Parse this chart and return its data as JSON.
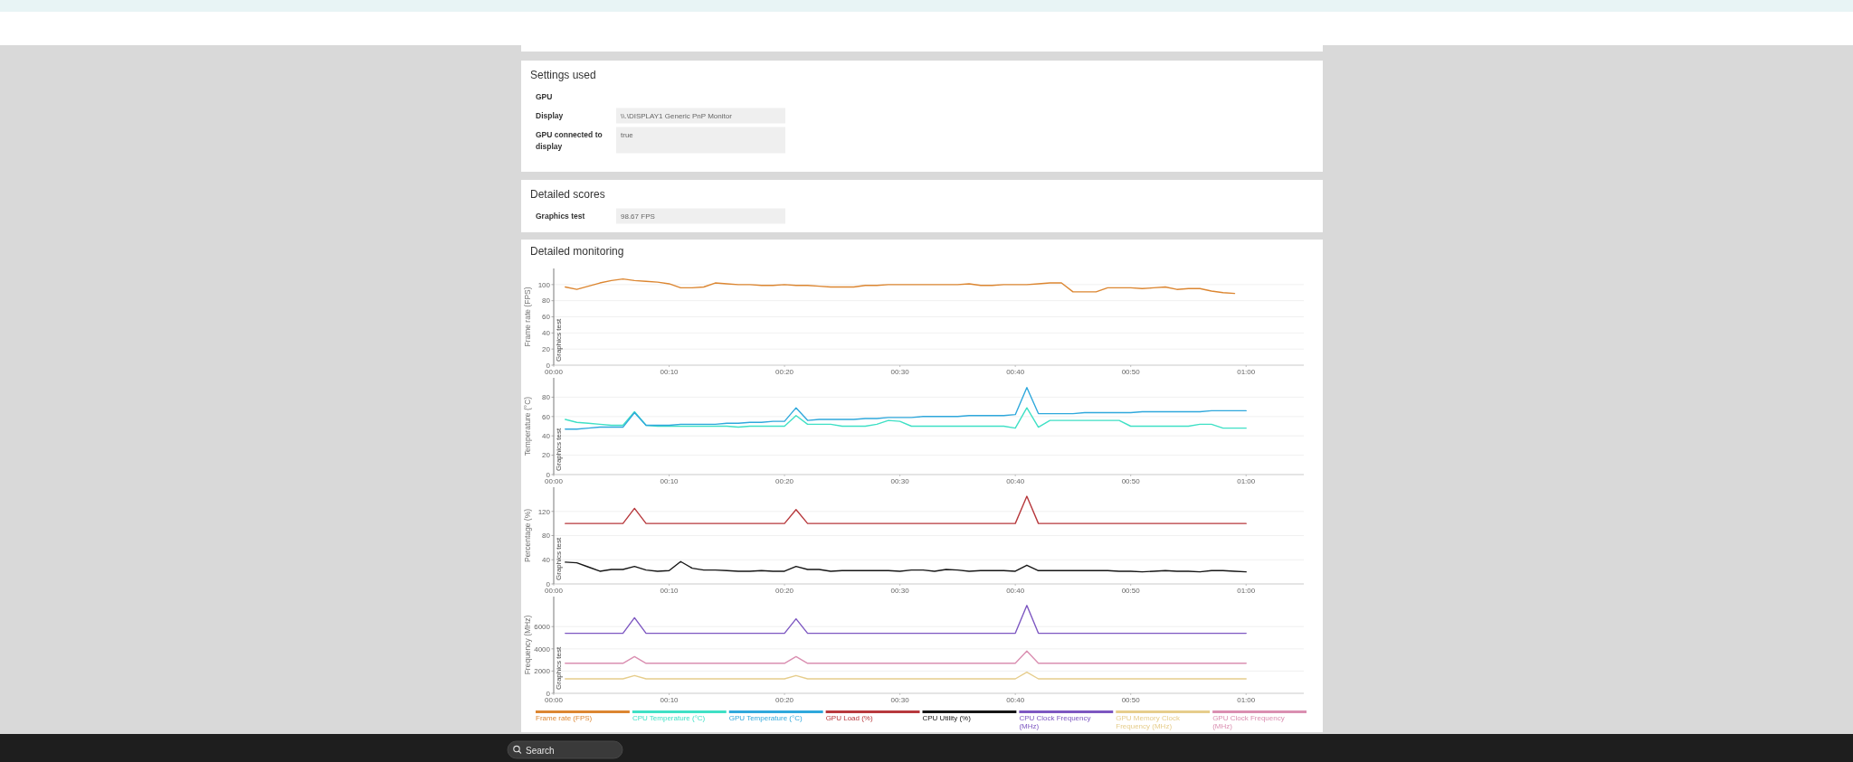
{
  "chart_data": [
    {
      "type": "other",
      "title": "Settings used",
      "categories": [
        "GPU",
        "Display",
        "GPU connected to display"
      ],
      "value_labels": [
        null,
        "\\\\.\\DISPLAY1 Generic PnP Monitor",
        "true"
      ]
    },
    {
      "type": "other",
      "title": "Detailed scores",
      "categories": [
        "Graphics test"
      ],
      "value_labels": [
        "98.67 FPS"
      ]
    },
    {
      "type": "line",
      "title": "Detailed monitoring",
      "ylabel": "Frame rate (FPS)",
      "x": [
        1,
        2,
        3,
        4,
        5,
        6,
        7,
        8,
        9,
        10,
        11,
        12,
        13,
        14,
        15,
        16,
        17,
        18,
        19,
        20,
        21,
        22,
        23,
        24,
        25,
        26,
        27,
        28,
        29,
        30,
        31,
        32,
        33,
        34,
        35,
        36,
        37,
        38,
        39,
        40,
        41,
        42,
        43,
        44,
        45,
        46,
        47,
        48,
        49,
        50,
        51,
        52,
        53,
        54,
        55,
        56,
        57,
        58,
        59
      ],
      "xlim": [
        0,
        65
      ],
      "xticks": [
        {
          "value": 0,
          "label": "00:00"
        },
        {
          "value": 10,
          "label": "00:10"
        },
        {
          "value": 20,
          "label": "00:20"
        },
        {
          "value": 30,
          "label": "00:30"
        },
        {
          "value": 40,
          "label": "00:40"
        },
        {
          "value": 50,
          "label": "00:50"
        },
        {
          "value": 60,
          "label": "01:00"
        }
      ],
      "ylim": [
        0,
        120
      ],
      "yticks": [
        0,
        20,
        40,
        60,
        80,
        100
      ],
      "grid": "y",
      "legend": "bottom",
      "ref_lines": [
        {
          "axis": "x",
          "value": 0,
          "label": "Graphics test"
        }
      ],
      "series": [
        {
          "name": "Frame rate (FPS)",
          "color": "#dc8631",
          "values": [
            97,
            94,
            98,
            102,
            105,
            107,
            105,
            104,
            103,
            101,
            96,
            96,
            97,
            102,
            101,
            100,
            100,
            99,
            99,
            100,
            99,
            99,
            98,
            97,
            97,
            97,
            99,
            99,
            100,
            100,
            100,
            100,
            100,
            100,
            100,
            101,
            99,
            99,
            100,
            100,
            100,
            101,
            102,
            102,
            91,
            91,
            91,
            96,
            96,
            96,
            95,
            96,
            97,
            94,
            95,
            95,
            92,
            90,
            89
          ]
        }
      ]
    },
    {
      "type": "line",
      "ylabel": "Temperature (°C)",
      "x": [
        1,
        2,
        3,
        4,
        5,
        6,
        7,
        8,
        9,
        10,
        11,
        12,
        13,
        14,
        15,
        16,
        17,
        18,
        19,
        20,
        21,
        22,
        23,
        24,
        25,
        26,
        27,
        28,
        29,
        30,
        31,
        32,
        33,
        34,
        35,
        36,
        37,
        38,
        39,
        40,
        41,
        42,
        43,
        44,
        45,
        46,
        47,
        48,
        49,
        50,
        51,
        52,
        53,
        54,
        55,
        56,
        57,
        58,
        59,
        60
      ],
      "xlim": [
        0,
        65
      ],
      "xticks": [
        {
          "value": 0,
          "label": "00:00"
        },
        {
          "value": 10,
          "label": "00:10"
        },
        {
          "value": 20,
          "label": "00:20"
        },
        {
          "value": 30,
          "label": "00:30"
        },
        {
          "value": 40,
          "label": "00:40"
        },
        {
          "value": 50,
          "label": "00:50"
        },
        {
          "value": 60,
          "label": "01:00"
        }
      ],
      "ylim": [
        0,
        100
      ],
      "yticks": [
        0,
        20,
        40,
        60,
        80
      ],
      "grid": "y",
      "legend": "bottom",
      "ref_lines": [
        {
          "axis": "x",
          "value": 0,
          "label": "Graphics test"
        }
      ],
      "series": [
        {
          "name": "CPU Temperature (°C)",
          "color": "#3fe0c5",
          "values": [
            57,
            54,
            53,
            52,
            51,
            51,
            65,
            51,
            50,
            50,
            50,
            50,
            50,
            50,
            50,
            49,
            50,
            50,
            50,
            50,
            61,
            52,
            52,
            52,
            50,
            50,
            50,
            52,
            56,
            55,
            50,
            50,
            50,
            50,
            50,
            50,
            50,
            50,
            50,
            48,
            69,
            49,
            56,
            56,
            56,
            56,
            56,
            56,
            56,
            50,
            50,
            50,
            50,
            50,
            50,
            52,
            52,
            48,
            48,
            48
          ]
        },
        {
          "name": "GPU Temperature (°C)",
          "color": "#2fa8dc",
          "values": [
            47,
            47,
            48,
            49,
            49,
            49,
            64,
            51,
            51,
            51,
            52,
            52,
            52,
            52,
            53,
            53,
            54,
            54,
            55,
            55,
            69,
            56,
            57,
            57,
            57,
            57,
            58,
            58,
            59,
            59,
            59,
            60,
            60,
            60,
            60,
            61,
            61,
            61,
            61,
            62,
            90,
            63,
            63,
            63,
            63,
            64,
            64,
            64,
            64,
            64,
            65,
            65,
            65,
            65,
            65,
            65,
            66,
            66,
            66,
            66
          ]
        }
      ]
    },
    {
      "type": "line",
      "ylabel": "Percentage (%)",
      "x": [
        1,
        2,
        3,
        4,
        5,
        6,
        7,
        8,
        9,
        10,
        11,
        12,
        13,
        14,
        15,
        16,
        17,
        18,
        19,
        20,
        21,
        22,
        23,
        24,
        25,
        26,
        27,
        28,
        29,
        30,
        31,
        32,
        33,
        34,
        35,
        36,
        37,
        38,
        39,
        40,
        41,
        42,
        43,
        44,
        45,
        46,
        47,
        48,
        49,
        50,
        51,
        52,
        53,
        54,
        55,
        56,
        57,
        58,
        59,
        60
      ],
      "xlim": [
        0,
        65
      ],
      "xticks": [
        {
          "value": 0,
          "label": "00:00"
        },
        {
          "value": 10,
          "label": "00:10"
        },
        {
          "value": 20,
          "label": "00:20"
        },
        {
          "value": 30,
          "label": "00:30"
        },
        {
          "value": 40,
          "label": "00:40"
        },
        {
          "value": 50,
          "label": "00:50"
        },
        {
          "value": 60,
          "label": "01:00"
        }
      ],
      "ylim": [
        0,
        160
      ],
      "yticks": [
        0,
        40,
        80,
        120
      ],
      "grid": "y",
      "legend": "bottom",
      "ref_lines": [
        {
          "axis": "x",
          "value": 0,
          "label": "Graphics test"
        }
      ],
      "series": [
        {
          "name": "GPU Load (%)",
          "color": "#b7393d",
          "values": [
            100,
            100,
            100,
            100,
            100,
            100,
            125,
            100,
            100,
            100,
            100,
            100,
            100,
            100,
            100,
            100,
            100,
            100,
            100,
            100,
            123,
            100,
            100,
            100,
            100,
            100,
            100,
            100,
            100,
            100,
            100,
            100,
            100,
            100,
            100,
            100,
            100,
            100,
            100,
            100,
            145,
            100,
            100,
            100,
            100,
            100,
            100,
            100,
            100,
            100,
            100,
            100,
            100,
            100,
            100,
            100,
            100,
            100,
            100,
            100
          ]
        },
        {
          "name": "CPU Utility (%)",
          "color": "#161616",
          "values": [
            36,
            35,
            28,
            21,
            24,
            24,
            29,
            23,
            21,
            22,
            37,
            26,
            23,
            23,
            22,
            21,
            21,
            22,
            21,
            21,
            29,
            24,
            24,
            21,
            22,
            22,
            22,
            22,
            22,
            21,
            23,
            23,
            21,
            24,
            23,
            21,
            22,
            22,
            22,
            21,
            31,
            22,
            22,
            22,
            22,
            22,
            22,
            22,
            21,
            21,
            20,
            21,
            22,
            21,
            21,
            20,
            22,
            22,
            21,
            20
          ]
        }
      ]
    },
    {
      "type": "line",
      "ylabel": "Frequency (MHz)",
      "x": [
        1,
        2,
        3,
        4,
        5,
        6,
        7,
        8,
        9,
        10,
        11,
        12,
        13,
        14,
        15,
        16,
        17,
        18,
        19,
        20,
        21,
        22,
        23,
        24,
        25,
        26,
        27,
        28,
        29,
        30,
        31,
        32,
        33,
        34,
        35,
        36,
        37,
        38,
        39,
        40,
        41,
        42,
        43,
        44,
        45,
        46,
        47,
        48,
        49,
        50,
        51,
        52,
        53,
        54,
        55,
        56,
        57,
        58,
        59,
        60
      ],
      "xlim": [
        0,
        65
      ],
      "xticks": [
        {
          "value": 0,
          "label": "00:00"
        },
        {
          "value": 10,
          "label": "00:10"
        },
        {
          "value": 20,
          "label": "00:20"
        },
        {
          "value": 30,
          "label": "00:30"
        },
        {
          "value": 40,
          "label": "00:40"
        },
        {
          "value": 50,
          "label": "00:50"
        },
        {
          "value": 60,
          "label": "01:00"
        }
      ],
      "ylim": [
        0,
        8700
      ],
      "yticks": [
        0,
        2000,
        4000,
        6000
      ],
      "grid": "y",
      "legend": "bottom",
      "ref_lines": [
        {
          "axis": "x",
          "value": 0,
          "label": "Graphics test"
        }
      ],
      "series": [
        {
          "name": "CPU Clock Frequency (MHz)",
          "color": "#7d57c1",
          "values": [
            5400,
            5400,
            5400,
            5400,
            5400,
            5400,
            6800,
            5400,
            5400,
            5400,
            5400,
            5400,
            5400,
            5400,
            5400,
            5400,
            5400,
            5400,
            5400,
            5400,
            6700,
            5400,
            5400,
            5400,
            5400,
            5400,
            5400,
            5400,
            5400,
            5400,
            5400,
            5400,
            5400,
            5400,
            5400,
            5400,
            5400,
            5400,
            5400,
            5400,
            7900,
            5400,
            5400,
            5400,
            5400,
            5400,
            5400,
            5400,
            5400,
            5400,
            5400,
            5400,
            5400,
            5400,
            5400,
            5400,
            5400,
            5400,
            5400,
            5400
          ]
        },
        {
          "name": "GPU Memory Clock Frequency (MHz)",
          "color": "#e6cd8c",
          "values": [
            1300,
            1300,
            1300,
            1300,
            1300,
            1300,
            1600,
            1300,
            1300,
            1300,
            1300,
            1300,
            1300,
            1300,
            1300,
            1300,
            1300,
            1300,
            1300,
            1300,
            1600,
            1300,
            1300,
            1300,
            1300,
            1300,
            1300,
            1300,
            1300,
            1300,
            1300,
            1300,
            1300,
            1300,
            1300,
            1300,
            1300,
            1300,
            1300,
            1300,
            1900,
            1300,
            1300,
            1300,
            1300,
            1300,
            1300,
            1300,
            1300,
            1300,
            1300,
            1300,
            1300,
            1300,
            1300,
            1300,
            1300,
            1300,
            1300,
            1300
          ]
        },
        {
          "name": "GPU Clock Frequency (MHz)",
          "color": "#da8fb1",
          "values": [
            2700,
            2700,
            2700,
            2700,
            2700,
            2700,
            3300,
            2700,
            2700,
            2700,
            2700,
            2700,
            2700,
            2700,
            2700,
            2700,
            2700,
            2700,
            2700,
            2700,
            3300,
            2700,
            2700,
            2700,
            2700,
            2700,
            2700,
            2700,
            2700,
            2700,
            2700,
            2700,
            2700,
            2700,
            2700,
            2700,
            2700,
            2700,
            2700,
            2700,
            3800,
            2700,
            2700,
            2700,
            2700,
            2700,
            2700,
            2700,
            2700,
            2700,
            2700,
            2700,
            2700,
            2700,
            2700,
            2700,
            2700,
            2700,
            2700,
            2700
          ]
        }
      ]
    },
    {
      "type": "other",
      "annotations": [
        "Search"
      ]
    }
  ]
}
